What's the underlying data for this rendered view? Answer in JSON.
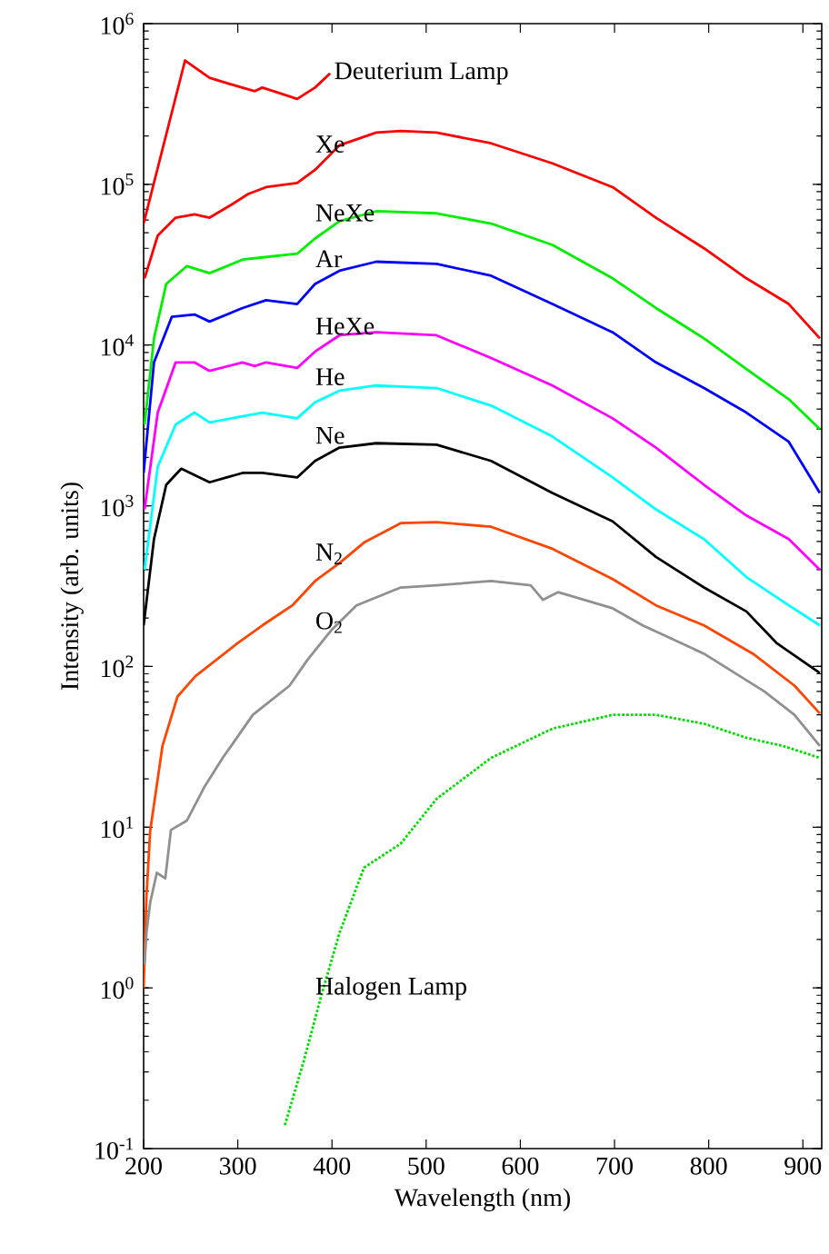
{
  "chart_data": {
    "type": "line",
    "xlabel": "Wavelength (nm)",
    "ylabel": "Intensity (arb. units)",
    "log": "y",
    "xlim": [
      200,
      920
    ],
    "xticks": [
      200,
      300,
      400,
      500,
      600,
      700,
      800,
      900
    ],
    "ylim": [
      0.1,
      1000000
    ],
    "yticks": [
      {
        "value": 0.1,
        "label": "10$^{-1}$"
      },
      {
        "value": 1,
        "label": "10$^{0}$"
      },
      {
        "value": 10,
        "label": "10$^{1}$"
      },
      {
        "value": 100,
        "label": "10$^{2}$"
      },
      {
        "value": 1000,
        "label": "10$^{3}$"
      },
      {
        "value": 10000,
        "label": "10$^{4}$"
      },
      {
        "value": 100000,
        "label": "10$^{5}$"
      },
      {
        "value": 1000000,
        "label": "10$^{6}$"
      }
    ],
    "grid": false,
    "marker": "none",
    "series": [
      {
        "color": "#ff0000",
        "line_style": "solid",
        "x": [
          200,
          244,
          270,
          292,
          318,
          326,
          344,
          363,
          382,
          398
        ],
        "values": [
          57000.0,
          590000.0,
          460000.0,
          420000.0,
          380000.0,
          400000.0,
          370000.0,
          340000.0,
          400000.0,
          490000.0
        ]
      },
      {
        "color": "#ff0000",
        "line_style": "solid",
        "x": [
          201,
          215,
          234,
          254,
          270,
          292,
          311,
          330,
          363,
          382,
          408,
          447,
          473,
          511,
          569,
          634,
          698,
          744,
          795,
          840,
          885,
          918
        ],
        "values": [
          26000.0,
          48000.0,
          62000.0,
          65000.0,
          62000.0,
          74000.0,
          87000.0,
          96000.0,
          102000.0,
          123000.0,
          175000.0,
          210000.0,
          215000.0,
          210000.0,
          180000.0,
          135000.0,
          96000.0,
          62000.0,
          40000.0,
          26000.0,
          18000.0,
          11000.0
        ]
      },
      {
        "color": "#00ee00",
        "line_style": "solid",
        "x": [
          201,
          211,
          224,
          246,
          270,
          305,
          324,
          363,
          382,
          408,
          447,
          511,
          569,
          634,
          698,
          744,
          795,
          840,
          885,
          918
        ],
        "values": [
          3200.0,
          11000.0,
          24000.0,
          31000.0,
          28000.0,
          34000.0,
          35000.0,
          37000.0,
          46000.0,
          59000.0,
          68000.0,
          66000.0,
          57000.0,
          42000.0,
          26000.0,
          17000.0,
          11000.0,
          7100.0,
          4600.0,
          3000.0
        ]
      },
      {
        "color": "#0000ff",
        "line_style": "solid",
        "x": [
          200,
          211,
          230,
          254,
          270,
          305,
          330,
          363,
          382,
          408,
          447,
          511,
          569,
          634,
          698,
          744,
          795,
          840,
          885,
          918
        ],
        "values": [
          1600.0,
          7800.0,
          15000.0,
          15500.0,
          14000.0,
          17000.0,
          19000.0,
          18000.0,
          24000.0,
          29000.0,
          33000.0,
          32000.0,
          27000.0,
          18000.0,
          12000.0,
          7800.0,
          5400.0,
          3800.0,
          2500.0,
          1200.0
        ]
      },
      {
        "color": "#ff00ff",
        "line_style": "solid",
        "x": [
          201,
          215,
          234,
          254,
          270,
          305,
          318,
          330,
          363,
          382,
          408,
          447,
          511,
          569,
          634,
          698,
          744,
          795,
          840,
          885,
          918
        ],
        "values": [
          950,
          3800.0,
          7800.0,
          7800.0,
          6900.0,
          7800.0,
          7400.0,
          7800.0,
          7200.0,
          9100.0,
          11500.0,
          12000.0,
          11500.0,
          8300.0,
          5600.0,
          3500.0,
          2300.0,
          1350.0,
          870,
          620,
          400
        ]
      },
      {
        "color": "#00ffff",
        "line_style": "solid",
        "x": [
          201,
          215,
          234,
          254,
          270,
          305,
          326,
          363,
          382,
          408,
          447,
          511,
          569,
          634,
          698,
          744,
          795,
          840,
          885,
          918
        ],
        "values": [
          400,
          1750.0,
          3200.0,
          3800.0,
          3300.0,
          3600.0,
          3800.0,
          3500.0,
          4400.0,
          5200.0,
          5600.0,
          5400.0,
          4200.0,
          2700.0,
          1500.0,
          950,
          620,
          360,
          240,
          180
        ]
      },
      {
        "color": "#000000",
        "line_style": "solid",
        "x": [
          200,
          211,
          224,
          240,
          270,
          305,
          326,
          363,
          382,
          408,
          447,
          511,
          569,
          634,
          698,
          744,
          795,
          840,
          872,
          918
        ],
        "values": [
          180,
          620,
          1350.0,
          1700.0,
          1400.0,
          1600.0,
          1600.0,
          1500.0,
          1900.0,
          2300.0,
          2450.0,
          2400.0,
          1900.0,
          1200.0,
          800,
          480,
          310,
          220,
          140,
          91
        ]
      },
      {
        "color": "#ff4500",
        "line_style": "solid",
        "x": [
          200,
          203,
          207,
          220,
          236,
          255,
          300,
          326,
          358,
          382,
          408,
          434,
          473,
          511,
          569,
          634,
          698,
          744,
          795,
          847,
          891,
          918
        ],
        "values": [
          1.0,
          3.7,
          9.5,
          32,
          65,
          87,
          140,
          180,
          240,
          340,
          440,
          590,
          780,
          790,
          740,
          540,
          350,
          240,
          180,
          120,
          76,
          51
        ]
      },
      {
        "color": "#909090",
        "line_style": "solid",
        "x": [
          201,
          203,
          207,
          214,
          223,
          229,
          246,
          265,
          284,
          316,
          355,
          374,
          400,
          426,
          473,
          511,
          569,
          611,
          624,
          640,
          698,
          730,
          795,
          859,
          891,
          918
        ],
        "values": [
          1.4,
          2.2,
          3.4,
          5.2,
          4.8,
          9.6,
          11,
          18,
          27,
          50,
          76,
          110,
          170,
          240,
          310,
          320,
          340,
          320,
          260,
          290,
          230,
          180,
          120,
          70,
          50,
          32
        ]
      },
      {
        "color": "#00dd00",
        "line_style": "dotted",
        "x": [
          350,
          370,
          389,
          408,
          434,
          473,
          511,
          569,
          634,
          698,
          744,
          795,
          840,
          879,
          918
        ],
        "values": [
          0.14,
          0.35,
          0.91,
          2.2,
          5.6,
          7.9,
          15,
          27,
          41,
          50,
          50,
          44,
          36,
          32,
          27
        ]
      }
    ],
    "annotations": [
      "Deuterium Lamp",
      "Xe",
      "NeXe",
      "Ar",
      "HeXe",
      "He",
      "Ne",
      "N$_{2}$",
      "O$_{2}$",
      "Halogen Lamp"
    ]
  }
}
